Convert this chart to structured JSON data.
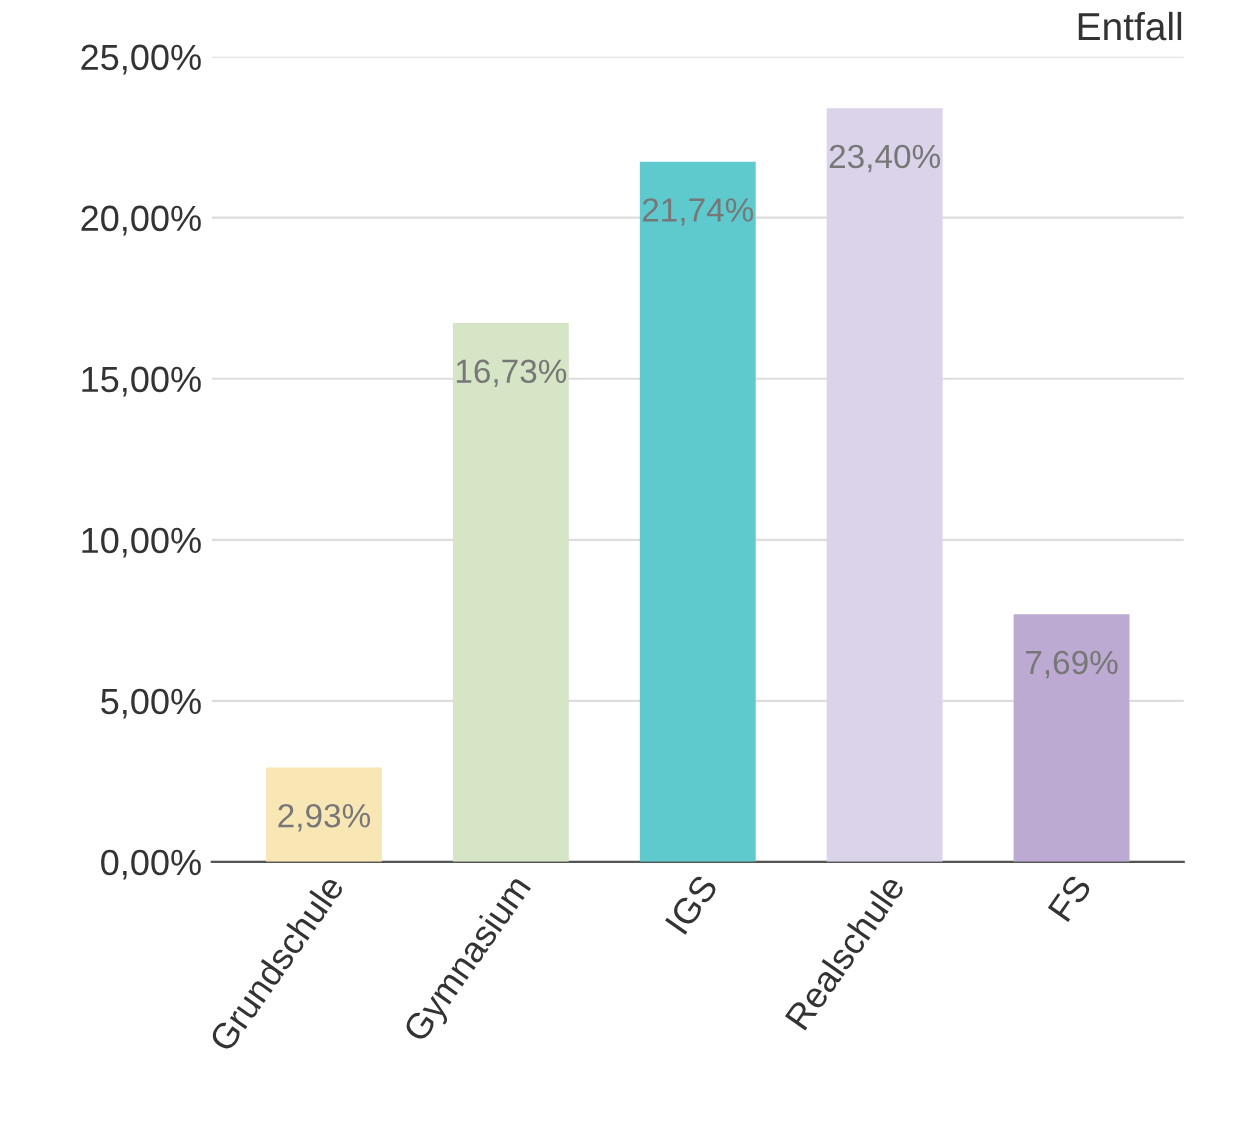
{
  "chart_data": {
    "type": "bar",
    "title": "Entfall",
    "categories": [
      "Grundschule",
      "Gymnasium",
      "IGS",
      "Realschule",
      "FS"
    ],
    "values": [
      2.93,
      16.73,
      21.74,
      23.4,
      7.69
    ],
    "colors": [
      "#f9e6b5",
      "#d5e5c6",
      "#5ecacd",
      "#dbd3ea",
      "#bcaad2"
    ],
    "value_labels": [
      "2,93%",
      "16,73%",
      "21,74%",
      "23,40%",
      "7,69%"
    ],
    "ylim": [
      0,
      25
    ],
    "yticks": [
      {
        "value": 0,
        "label": "0,00%"
      },
      {
        "value": 5,
        "label": "5,00%"
      },
      {
        "value": 10,
        "label": "10,00%"
      },
      {
        "value": 15,
        "label": "15,00%"
      },
      {
        "value": 20,
        "label": "20,00%"
      },
      {
        "value": 25,
        "label": "25,00%"
      }
    ],
    "grid": "y",
    "legend": false
  }
}
